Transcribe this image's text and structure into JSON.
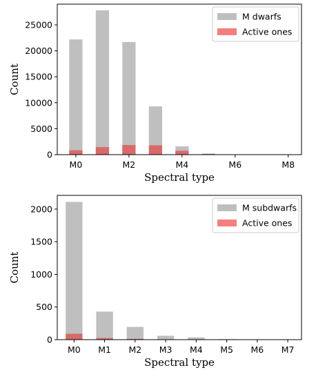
{
  "colors": {
    "all": "#bfbfbf",
    "active": "#f47f7f",
    "overlap": "#d86a6a",
    "axis": "#000000"
  },
  "chart_data": [
    {
      "type": "bar",
      "x": [
        0,
        1,
        2,
        3,
        4,
        5,
        6,
        7,
        8
      ],
      "series": [
        {
          "name": "M dwarfs",
          "values": [
            22200,
            27800,
            21700,
            9300,
            1600,
            200,
            30,
            20,
            10
          ]
        },
        {
          "name": "Active ones",
          "values": [
            850,
            1450,
            1850,
            1800,
            750,
            120,
            20,
            10,
            5
          ]
        }
      ],
      "xlabel": "Spectral type",
      "ylabel": "Count",
      "xticks": [
        0,
        2,
        4,
        6,
        8
      ],
      "xtick_labels": [
        "M0",
        "M2",
        "M4",
        "M6",
        "M8"
      ],
      "yticks": [
        0,
        5000,
        10000,
        15000,
        20000,
        25000
      ],
      "ytick_labels": [
        "0",
        "5000",
        "10000",
        "15000",
        "20000",
        "25000"
      ],
      "ylim": [
        0,
        29000
      ],
      "legend_position": "top-right"
    },
    {
      "type": "bar",
      "x": [
        0,
        1,
        2,
        3,
        4,
        5,
        6,
        7
      ],
      "series": [
        {
          "name": "M subdwarfs",
          "values": [
            2110,
            430,
            195,
            60,
            35,
            8,
            4,
            3
          ]
        },
        {
          "name": "Active ones",
          "values": [
            90,
            25,
            12,
            3,
            2,
            1,
            0,
            0
          ]
        }
      ],
      "xlabel": "Spectral type",
      "ylabel": "Count",
      "xticks": [
        0,
        1,
        2,
        3,
        4,
        5,
        6,
        7
      ],
      "xtick_labels": [
        "M0",
        "M1",
        "M2",
        "M3",
        "M4",
        "M5",
        "M6",
        "M7"
      ],
      "yticks": [
        0,
        500,
        1000,
        1500,
        2000
      ],
      "ytick_labels": [
        "0",
        "500",
        "1000",
        "1500",
        "2000"
      ],
      "ylim": [
        0,
        2210
      ],
      "legend_position": "top-right"
    }
  ]
}
